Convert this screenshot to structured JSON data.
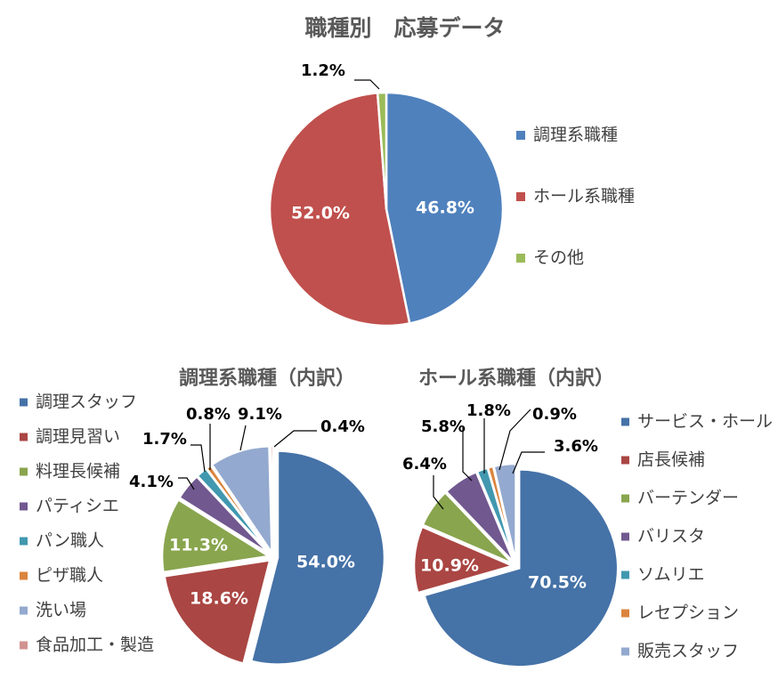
{
  "chart_data": [
    {
      "id": "main",
      "type": "pie",
      "title": "職種別　応募データ",
      "categories": [
        "調理系職種",
        "ホール系職種",
        "その他"
      ],
      "values": [
        46.8,
        52.0,
        1.2
      ],
      "labels": [
        "46.8%",
        "52.0%",
        "1.2%"
      ],
      "colors": [
        "#4F81BD",
        "#C0504D",
        "#9BBB59"
      ],
      "legend_position": "right"
    },
    {
      "id": "kitchen",
      "type": "pie",
      "title": "調理系職種（内訳）",
      "categories": [
        "調理スタッフ",
        "調理見習い",
        "料理長候補",
        "パティシエ",
        "パン職人",
        "ピザ職人",
        "洗い場",
        "食品加工・製造"
      ],
      "values": [
        54.0,
        18.6,
        11.3,
        4.1,
        1.7,
        0.8,
        9.1,
        0.4
      ],
      "labels": [
        "54.0%",
        "18.6%",
        "11.3%",
        "4.1%",
        "1.7%",
        "0.8%",
        "9.1%",
        "0.4%"
      ],
      "colors": [
        "#4572A7",
        "#AA4643",
        "#89A54E",
        "#71588F",
        "#4198AF",
        "#DB843D",
        "#93A9CF",
        "#D19392"
      ],
      "legend_position": "left"
    },
    {
      "id": "hall",
      "type": "pie",
      "title": "ホール系職種（内訳）",
      "categories": [
        "サービス・ホール",
        "店長候補",
        "バーテンダー",
        "バリスタ",
        "ソムリエ",
        "レセプション",
        "販売スタッフ"
      ],
      "values": [
        70.5,
        10.9,
        6.4,
        5.8,
        1.8,
        0.9,
        3.6
      ],
      "labels": [
        "70.5%",
        "10.9%",
        "6.4%",
        "5.8%",
        "1.8%",
        "0.9%",
        "3.6%"
      ],
      "colors": [
        "#4572A7",
        "#AA4643",
        "#89A54E",
        "#71588F",
        "#4198AF",
        "#DB843D",
        "#93A9CF"
      ],
      "legend_position": "right"
    }
  ]
}
